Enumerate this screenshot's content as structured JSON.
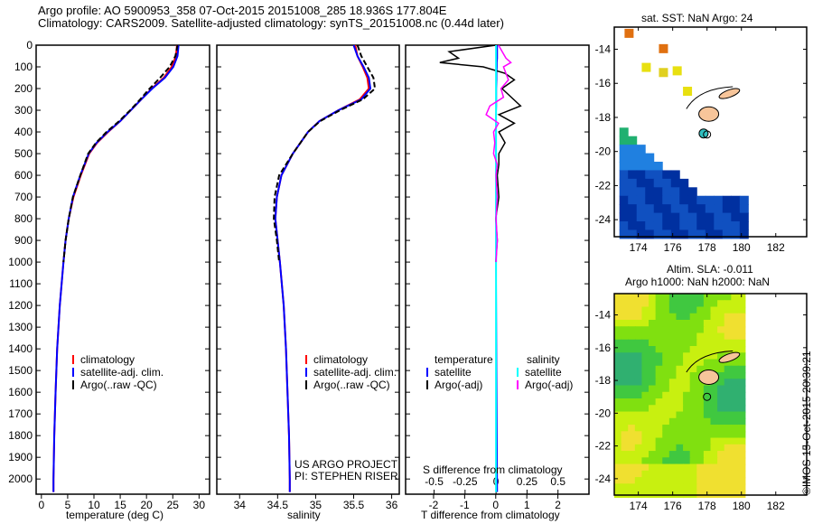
{
  "title": {
    "line1": "Argo profile: AO 5900953_358 07-Oct-2015 20151008_285 18.936S 177.804E",
    "line2": "Climatology: CARS2009. Satellite-adjusted climatology: synTS_20151008.nc (0.44d later)"
  },
  "colors": {
    "climatology": "#ff0000",
    "satellite": "#0000ff",
    "argo": "#000000",
    "sal_satellite": "#00ffff",
    "sal_argo": "#ff00ff",
    "land": "#f7c59a"
  },
  "chart_data": [
    {
      "type": "line",
      "name": "temperature",
      "xlabel": "temperature (deg C)",
      "xlim": [
        -1,
        32
      ],
      "ylim": [
        2070,
        0
      ],
      "xticks": [
        0,
        5,
        10,
        15,
        20,
        25,
        30
      ],
      "yticks": [
        0,
        100,
        200,
        300,
        400,
        500,
        600,
        700,
        800,
        900,
        1000,
        1100,
        1200,
        1300,
        1400,
        1500,
        1600,
        1700,
        1800,
        1900,
        2000
      ],
      "depth": [
        0,
        50,
        100,
        150,
        200,
        250,
        300,
        350,
        400,
        450,
        500,
        600,
        700,
        800,
        900,
        1000,
        1200,
        1400,
        1600,
        1800,
        2000,
        2060
      ],
      "series": [
        {
          "name": "climatology",
          "values": [
            25.8,
            25.6,
            24.8,
            23.3,
            21,
            19,
            17,
            15,
            12.7,
            10.6,
            9.1,
            7.5,
            6.1,
            5.2,
            4.6,
            4.2,
            3.5,
            3.0,
            2.7,
            2.45,
            2.3,
            2.3
          ]
        },
        {
          "name": "satellite-adj. clim.",
          "values": [
            26.1,
            25.9,
            25.1,
            23.5,
            21.1,
            19,
            17,
            15,
            12.6,
            10.5,
            9,
            7.4,
            6,
            5.2,
            4.6,
            4.2,
            3.5,
            3.0,
            2.7,
            2.45,
            2.3,
            2.3
          ]
        },
        {
          "name": "Argo(..raw -QC)",
          "values": [
            25.9,
            25.5,
            24.4,
            22.6,
            20.6,
            18.8,
            16.9,
            14.8,
            12.4,
            10.4,
            8.9,
            7.4,
            6,
            5.2,
            4.6,
            4.2,
            null,
            null,
            null,
            null,
            null,
            null
          ]
        }
      ],
      "legend": [
        "climatology",
        "satellite-adj. clim.",
        "Argo(..raw -QC)"
      ]
    },
    {
      "type": "line",
      "name": "salinity",
      "xlabel": "salinity",
      "xlim": [
        33.7,
        36.1
      ],
      "ylim": [
        2070,
        0
      ],
      "xticks": [
        34,
        34.5,
        35,
        35.5,
        36
      ],
      "depth": [
        0,
        50,
        100,
        150,
        200,
        250,
        300,
        350,
        400,
        450,
        500,
        600,
        700,
        800,
        900,
        1000,
        1200,
        1400,
        1600,
        1800,
        2000,
        2060
      ],
      "series": [
        {
          "name": "climatology",
          "values": [
            35.52,
            35.55,
            35.62,
            35.68,
            35.7,
            35.58,
            35.3,
            35.05,
            34.9,
            34.8,
            34.7,
            34.55,
            34.49,
            34.47,
            34.5,
            34.53,
            34.58,
            34.61,
            34.63,
            34.65,
            34.66,
            34.66
          ]
        },
        {
          "name": "satellite-adj. clim.",
          "values": [
            35.5,
            35.55,
            35.63,
            35.7,
            35.72,
            35.6,
            35.3,
            35.05,
            34.9,
            34.8,
            34.7,
            34.55,
            34.49,
            34.47,
            34.5,
            34.53,
            34.58,
            34.61,
            34.63,
            34.65,
            34.66,
            34.66
          ]
        },
        {
          "name": "Argo(..raw -QC)",
          "values": [
            35.55,
            35.6,
            35.68,
            35.76,
            35.78,
            35.62,
            35.32,
            35.06,
            34.9,
            34.8,
            34.7,
            34.52,
            34.46,
            34.45,
            34.49,
            34.52,
            null,
            null,
            null,
            null,
            null,
            null
          ]
        }
      ],
      "legend": [
        "climatology",
        "satellite-adj. clim.",
        "Argo(..raw -QC)"
      ],
      "annotation": [
        "US ARGO PROJECT",
        "PI: STEPHEN RISER"
      ]
    },
    {
      "type": "line",
      "name": "difference",
      "xlabel": "T difference from climatology",
      "x2label": "S difference from climatology",
      "xlim": [
        -2.9,
        3
      ],
      "x2lim": [
        -0.73,
        0.75
      ],
      "ylim": [
        2070,
        0
      ],
      "xticks": [
        -2,
        -1,
        0,
        1,
        2
      ],
      "x2ticks": [
        "-0.5",
        "-0.25",
        "0",
        "0.25",
        "0.5"
      ],
      "depth": [
        0,
        30,
        60,
        80,
        100,
        130,
        160,
        200,
        240,
        280,
        320,
        360,
        400,
        450,
        500,
        550,
        600,
        700,
        800,
        900,
        1000
      ],
      "series": [
        {
          "name": "T satellite",
          "values": [
            0.05,
            0.05,
            0.05,
            0.04,
            0.04,
            0.03,
            0.03,
            0.02,
            0.02,
            0.02,
            0.01,
            0.01,
            0.01,
            0.01,
            0.01,
            0.01,
            0.01,
            0.01,
            0.01,
            0.01,
            0.01
          ]
        },
        {
          "name": "T Argo(-adj)",
          "values": [
            0,
            -1.5,
            -1.2,
            -1.8,
            -0.4,
            0.3,
            0.6,
            0.2,
            0.5,
            0.8,
            0.1,
            0.6,
            0.1,
            0.3,
            0.1,
            0.1,
            0.05,
            0.1,
            0,
            0.05,
            0
          ]
        },
        {
          "name": "S satellite",
          "values": [
            0,
            0,
            0,
            0,
            0,
            0,
            0,
            0,
            0,
            0,
            0,
            0,
            0,
            0,
            0,
            0,
            0,
            0,
            0,
            0,
            0
          ]
        },
        {
          "name": "S Argo(-adj)",
          "values": [
            0.02,
            0.05,
            0.08,
            0.12,
            0.06,
            0.08,
            0.1,
            0.04,
            0.06,
            -0.05,
            -0.08,
            0.02,
            -0.02,
            -0.01,
            -0.02,
            0.01,
            0.0,
            0.01,
            0.0,
            0.01,
            0
          ]
        }
      ],
      "legend": {
        "temperature": "temperature",
        "salinity": "salinity",
        "items": [
          "satellite",
          "Argo(-adj)",
          "satellite",
          "Argo(-adj)"
        ]
      }
    }
  ],
  "map_sst": {
    "title": "sat. SST: NaN Argo: 24",
    "xticks": [
      174,
      176,
      178,
      180,
      182
    ],
    "yticks": [
      -14,
      -16,
      -18,
      -20,
      -22,
      -24
    ],
    "argo_lon": 177.8,
    "argo_lat": -18.94
  },
  "map_sla": {
    "title1": "Altim. SLA: -0.011",
    "title2": "Argo h1000: NaN h2000: NaN",
    "xticks": [
      174,
      176,
      178,
      180,
      182
    ],
    "yticks": [
      -14,
      -16,
      -18,
      -20,
      -22,
      -24
    ]
  },
  "footer": "©IMOS 15-Oct-2015 20:39:21"
}
